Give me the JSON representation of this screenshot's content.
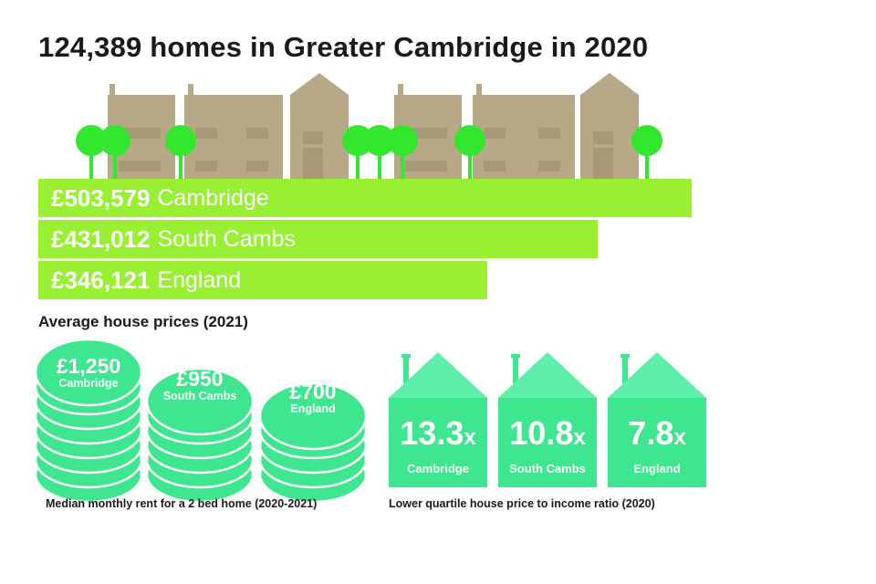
{
  "title": "124,389 homes in Greater Cambridge in 2020",
  "colors": {
    "bar": "#99f033",
    "house": "#b7a888",
    "house_dark": "#a79877",
    "tree": "#33e62e",
    "coin": "#3ee690",
    "coin_edge": "#ffffff",
    "ratio_house": "#3ee690",
    "ratio_roof": "#5ef0aa"
  },
  "chart_data": [
    {
      "type": "bar",
      "orientation": "horizontal",
      "title": "Average house prices (2021)",
      "categories": [
        "Cambridge",
        "South Cambs",
        "England"
      ],
      "values": [
        503579,
        431012,
        346121
      ],
      "value_labels": [
        "£503,579",
        "£431,012",
        "£346,121"
      ]
    },
    {
      "type": "bar",
      "style": "coin-stacks",
      "title": "Median monthly rent for a 2 bed home (2020-2021)",
      "categories": [
        "Cambridge",
        "South Cambs",
        "England"
      ],
      "values": [
        1250,
        950,
        700
      ],
      "value_labels": [
        "£1,250",
        "£950",
        "£700"
      ]
    },
    {
      "type": "bar",
      "style": "house-icons",
      "title": "Lower quartile house price to income ratio (2020)",
      "categories": [
        "Cambridge",
        "South Cambs",
        "England"
      ],
      "values": [
        13.3,
        10.8,
        7.8
      ],
      "value_labels": [
        "13.3",
        "10.8",
        "7.8"
      ],
      "unit": "x"
    }
  ]
}
